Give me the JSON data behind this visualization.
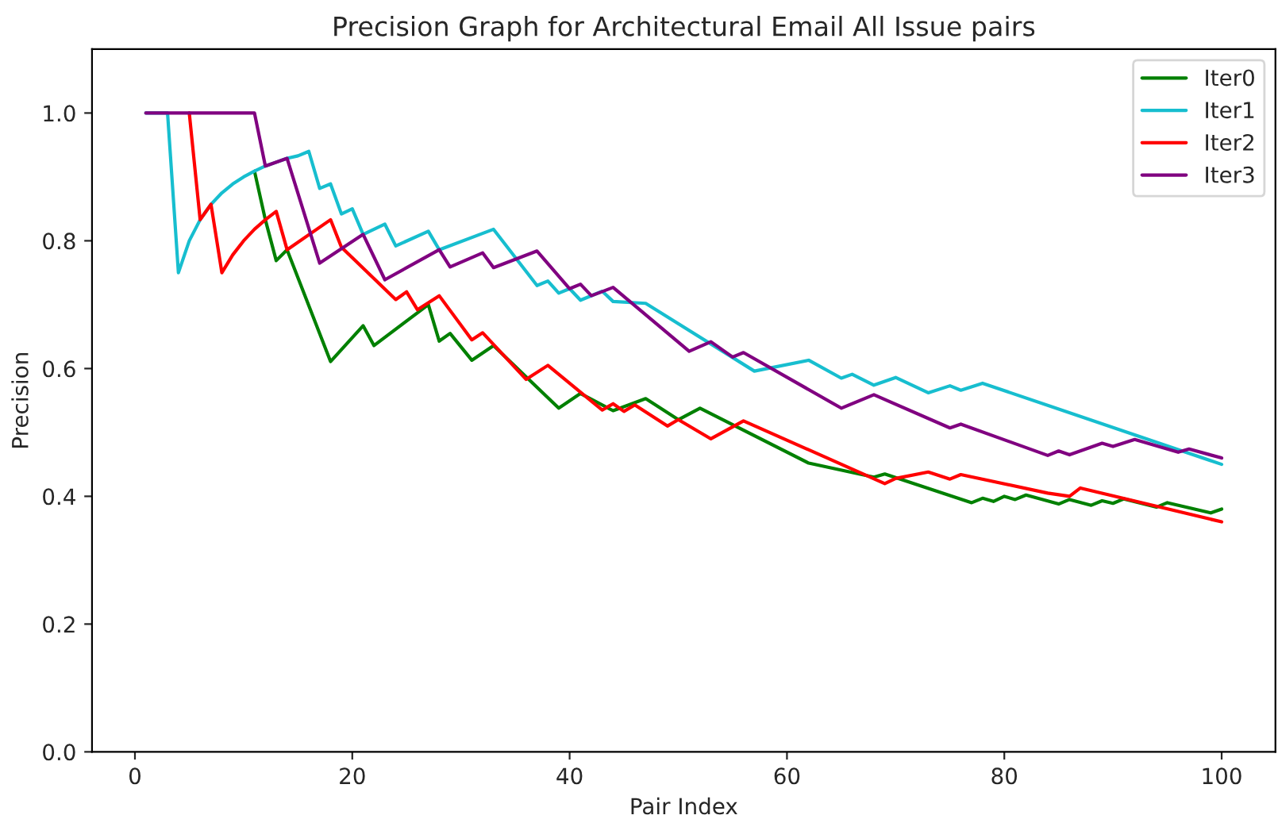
{
  "chart_data": {
    "type": "line",
    "title": "Precision Graph for Architectural Email All Issue pairs",
    "xlabel": "Pair Index",
    "ylabel": "Precision",
    "xlim": [
      -3.95,
      104.95
    ],
    "xticks": [
      0,
      20,
      40,
      60,
      80,
      100
    ],
    "ylim": [
      0,
      1.1
    ],
    "yticks": [
      {
        "value": 0,
        "label": "0.0"
      },
      0.2,
      0.4,
      0.6,
      0.8,
      {
        "value": 1,
        "label": "1.0"
      }
    ],
    "grid": false,
    "legend": "top right",
    "series": [
      {
        "name": "Iter0",
        "color": "#008000",
        "x": [
          11,
          12,
          13,
          14,
          18,
          21,
          22,
          27,
          28,
          29,
          31,
          33,
          39,
          41,
          44,
          47,
          50,
          52,
          62,
          68,
          69,
          77,
          78,
          79,
          80,
          81,
          82,
          85,
          86,
          88,
          89,
          90,
          91,
          94,
          95,
          99,
          100
        ],
        "values": [
          0.909,
          0.833,
          0.769,
          0.786,
          0.611,
          0.667,
          0.636,
          0.7,
          0.643,
          0.655,
          0.613,
          0.636,
          0.538,
          0.561,
          0.534,
          0.553,
          0.52,
          0.538,
          0.452,
          0.43,
          0.435,
          0.39,
          0.397,
          0.392,
          0.4,
          0.395,
          0.402,
          0.388,
          0.395,
          0.386,
          0.393,
          0.389,
          0.396,
          0.383,
          0.39,
          0.374,
          0.38
        ]
      },
      {
        "name": "Iter1",
        "color": "#17becf",
        "x": [
          1,
          3,
          4,
          5,
          6,
          7,
          8,
          9,
          10,
          11,
          12,
          13,
          14,
          15,
          16,
          17,
          18,
          19,
          20,
          21,
          23,
          24,
          27,
          28,
          33,
          37,
          38,
          39,
          40,
          41,
          43,
          44,
          47,
          57,
          62,
          65,
          66,
          68,
          70,
          73,
          75,
          76,
          78,
          100
        ],
        "values": [
          1.0,
          1.0,
          0.75,
          0.8,
          0.833,
          0.857,
          0.875,
          0.889,
          0.9,
          0.909,
          0.917,
          0.923,
          0.929,
          0.933,
          0.94,
          0.882,
          0.889,
          0.842,
          0.85,
          0.81,
          0.826,
          0.792,
          0.815,
          0.786,
          0.818,
          0.73,
          0.737,
          0.718,
          0.725,
          0.707,
          0.721,
          0.705,
          0.702,
          0.596,
          0.613,
          0.585,
          0.591,
          0.574,
          0.586,
          0.562,
          0.573,
          0.566,
          0.577,
          0.45
        ]
      },
      {
        "name": "Iter2",
        "color": "#ff0000",
        "x": [
          5,
          6,
          7,
          8,
          9,
          10,
          11,
          12,
          13,
          14,
          18,
          19,
          24,
          25,
          26,
          28,
          31,
          32,
          36,
          38,
          43,
          44,
          45,
          46,
          49,
          50,
          53,
          56,
          69,
          70,
          73,
          75,
          76,
          84,
          86,
          87,
          100
        ],
        "values": [
          1.0,
          0.833,
          0.857,
          0.75,
          0.778,
          0.8,
          0.818,
          0.833,
          0.846,
          0.786,
          0.833,
          0.79,
          0.708,
          0.72,
          0.692,
          0.714,
          0.645,
          0.656,
          0.583,
          0.605,
          0.535,
          0.545,
          0.533,
          0.543,
          0.51,
          0.52,
          0.49,
          0.518,
          0.42,
          0.428,
          0.438,
          0.427,
          0.434,
          0.405,
          0.4,
          0.413,
          0.36
        ]
      },
      {
        "name": "Iter3",
        "color": "#800080",
        "x": [
          1,
          11,
          12,
          14,
          17,
          21,
          23,
          28,
          29,
          32,
          33,
          37,
          40,
          41,
          42,
          44,
          51,
          53,
          55,
          56,
          65,
          68,
          75,
          76,
          84,
          85,
          86,
          89,
          90,
          92,
          96,
          97,
          100
        ],
        "values": [
          1.0,
          1.0,
          0.917,
          0.929,
          0.765,
          0.81,
          0.739,
          0.786,
          0.759,
          0.781,
          0.758,
          0.784,
          0.725,
          0.732,
          0.714,
          0.727,
          0.627,
          0.642,
          0.618,
          0.625,
          0.538,
          0.559,
          0.507,
          0.513,
          0.464,
          0.471,
          0.465,
          0.483,
          0.478,
          0.489,
          0.469,
          0.474,
          0.46
        ]
      }
    ]
  }
}
